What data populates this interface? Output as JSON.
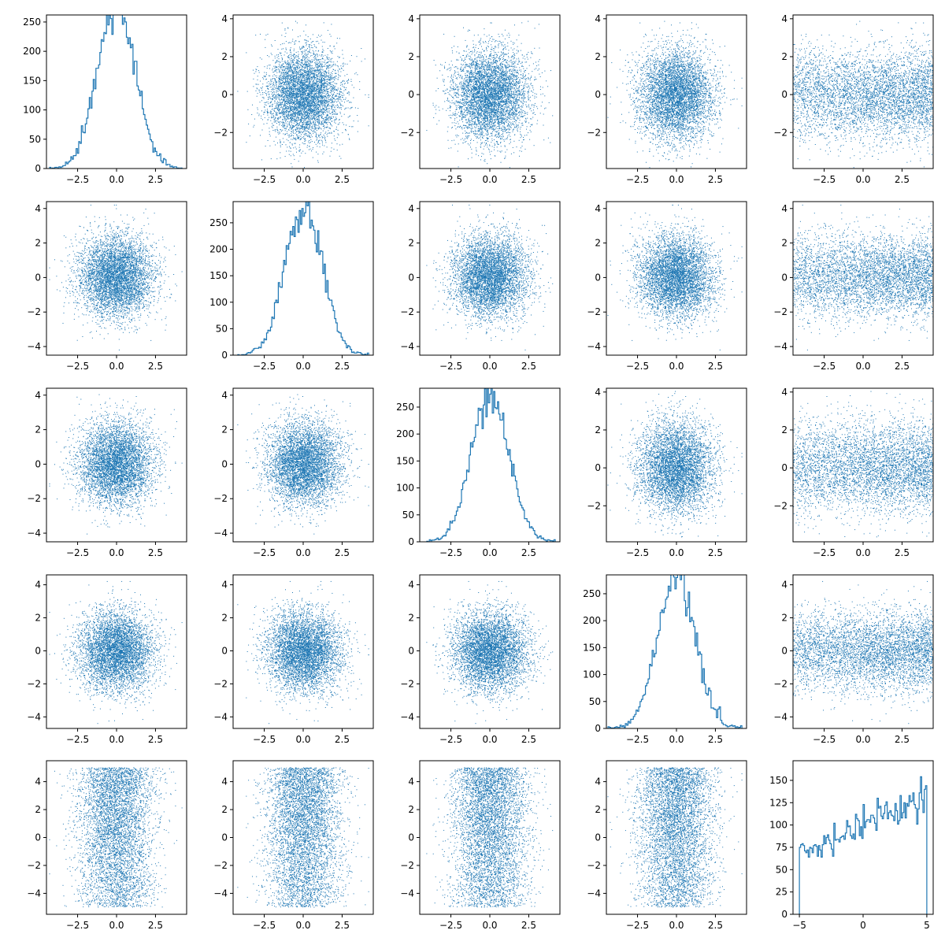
{
  "chart_data": {
    "type": "scatter",
    "kind": "scatter-matrix",
    "n_vars": 5,
    "n_points": 10000,
    "point_color": "#1f77b4",
    "diagonal_type": "histogram",
    "off_diagonal_type": "scatter",
    "variables": [
      {
        "index": 0,
        "distribution": "normal",
        "mean": 0,
        "sd": 1.2,
        "range": [
          -4.3,
          4.2
        ]
      },
      {
        "index": 1,
        "distribution": "normal",
        "mean": 0,
        "sd": 1.2,
        "range": [
          -4.2,
          4.2
        ]
      },
      {
        "index": 2,
        "distribution": "normal",
        "mean": 0,
        "sd": 1.2,
        "range": [
          -4.3,
          4.2
        ]
      },
      {
        "index": 3,
        "distribution": "normal",
        "mean": 0,
        "sd": 1.2,
        "range": [
          -4.4,
          4.2
        ]
      },
      {
        "index": 4,
        "distribution": "skewed-uniform",
        "range": [
          -5,
          5
        ],
        "increasing_density": true
      }
    ],
    "axes": [
      {
        "row": 0,
        "col": 0,
        "kind": "hist",
        "xlim": [
          -4.5,
          4.5
        ],
        "ylim": [
          0,
          262
        ],
        "xticks": [
          -2.5,
          0,
          2.5
        ],
        "xtick_labels": [
          "−2.5",
          "0.0",
          "2.5"
        ],
        "yticks": [
          0,
          50,
          100,
          150,
          200,
          250
        ],
        "ytick_labels": [
          "0",
          "50",
          "100",
          "150",
          "200",
          "250"
        ]
      },
      {
        "row": 0,
        "col": 1,
        "kind": "scatter",
        "xlim": [
          -4.5,
          4.5
        ],
        "ylim": [
          -3.9,
          4.2
        ],
        "xticks": [
          -2.5,
          0,
          2.5
        ],
        "xtick_labels": [
          "−2.5",
          "0.0",
          "2.5"
        ],
        "yticks": [
          -2,
          0,
          2,
          4
        ],
        "ytick_labels": [
          "−2",
          "0",
          "2",
          "4"
        ]
      },
      {
        "row": 0,
        "col": 2,
        "kind": "scatter",
        "xlim": [
          -4.5,
          4.5
        ],
        "ylim": [
          -3.9,
          4.2
        ],
        "xticks": [
          -2.5,
          0,
          2.5
        ],
        "xtick_labels": [
          "−2.5",
          "0.0",
          "2.5"
        ],
        "yticks": [
          -2,
          0,
          2,
          4
        ],
        "ytick_labels": [
          "−2",
          "0",
          "2",
          "4"
        ]
      },
      {
        "row": 0,
        "col": 3,
        "kind": "scatter",
        "xlim": [
          -4.5,
          4.5
        ],
        "ylim": [
          -3.9,
          4.2
        ],
        "xticks": [
          -2.5,
          0,
          2.5
        ],
        "xtick_labels": [
          "−2.5",
          "0.0",
          "2.5"
        ],
        "yticks": [
          -2,
          0,
          2,
          4
        ],
        "ytick_labels": [
          "−2",
          "0",
          "2",
          "4"
        ]
      },
      {
        "row": 0,
        "col": 4,
        "kind": "scatter",
        "xlim": [
          -4.5,
          4.5
        ],
        "ylim": [
          -3.9,
          4.2
        ],
        "xticks": [
          -2.5,
          0,
          2.5
        ],
        "xtick_labels": [
          "−2.5",
          "0.0",
          "2.5"
        ],
        "yticks": [
          -2,
          0,
          2,
          4
        ],
        "ytick_labels": [
          "−2",
          "0",
          "2",
          "4"
        ]
      },
      {
        "row": 1,
        "col": 0,
        "kind": "scatter",
        "xlim": [
          -4.5,
          4.5
        ],
        "ylim": [
          -4.5,
          4.4
        ],
        "xticks": [
          -2.5,
          0,
          2.5
        ],
        "xtick_labels": [
          "−2.5",
          "0.0",
          "2.5"
        ],
        "yticks": [
          -4,
          -2,
          0,
          2,
          4
        ],
        "ytick_labels": [
          "−4",
          "−2",
          "0",
          "2",
          "4"
        ]
      },
      {
        "row": 1,
        "col": 1,
        "kind": "hist",
        "xlim": [
          -4.5,
          4.5
        ],
        "ylim": [
          0,
          290
        ],
        "xticks": [
          -2.5,
          0,
          2.5
        ],
        "xtick_labels": [
          "−2.5",
          "0.0",
          "2.5"
        ],
        "yticks": [
          0,
          50,
          100,
          150,
          200,
          250
        ],
        "ytick_labels": [
          "0",
          "50",
          "100",
          "150",
          "200",
          "250"
        ]
      },
      {
        "row": 1,
        "col": 2,
        "kind": "scatter",
        "xlim": [
          -4.5,
          4.5
        ],
        "ylim": [
          -4.5,
          4.4
        ],
        "xticks": [
          -2.5,
          0,
          2.5
        ],
        "xtick_labels": [
          "−2.5",
          "0.0",
          "2.5"
        ],
        "yticks": [
          -4,
          -2,
          0,
          2,
          4
        ],
        "ytick_labels": [
          "−4",
          "−2",
          "0",
          "2",
          "4"
        ]
      },
      {
        "row": 1,
        "col": 3,
        "kind": "scatter",
        "xlim": [
          -4.5,
          4.5
        ],
        "ylim": [
          -4.5,
          4.4
        ],
        "xticks": [
          -2.5,
          0,
          2.5
        ],
        "xtick_labels": [
          "−2.5",
          "0.0",
          "2.5"
        ],
        "yticks": [
          -4,
          -2,
          0,
          2,
          4
        ],
        "ytick_labels": [
          "−4",
          "−2",
          "0",
          "2",
          "4"
        ]
      },
      {
        "row": 1,
        "col": 4,
        "kind": "scatter",
        "xlim": [
          -4.5,
          4.5
        ],
        "ylim": [
          -4.5,
          4.4
        ],
        "xticks": [
          -2.5,
          0,
          2.5
        ],
        "xtick_labels": [
          "−2.5",
          "0.0",
          "2.5"
        ],
        "yticks": [
          -4,
          -2,
          0,
          2,
          4
        ],
        "ytick_labels": [
          "−4",
          "−2",
          "0",
          "2",
          "4"
        ]
      },
      {
        "row": 2,
        "col": 0,
        "kind": "scatter",
        "xlim": [
          -4.5,
          4.5
        ],
        "ylim": [
          -4.5,
          4.4
        ],
        "xticks": [
          -2.5,
          0,
          2.5
        ],
        "xtick_labels": [
          "−2.5",
          "0.0",
          "2.5"
        ],
        "yticks": [
          -4,
          -2,
          0,
          2,
          4
        ],
        "ytick_labels": [
          "−4",
          "−2",
          "0",
          "2",
          "4"
        ]
      },
      {
        "row": 2,
        "col": 1,
        "kind": "scatter",
        "xlim": [
          -4.5,
          4.5
        ],
        "ylim": [
          -4.5,
          4.4
        ],
        "xticks": [
          -2.5,
          0,
          2.5
        ],
        "xtick_labels": [
          "−2.5",
          "0.0",
          "2.5"
        ],
        "yticks": [
          -4,
          -2,
          0,
          2,
          4
        ],
        "ytick_labels": [
          "−4",
          "−2",
          "0",
          "2",
          "4"
        ]
      },
      {
        "row": 2,
        "col": 2,
        "kind": "hist",
        "xlim": [
          -4.5,
          4.5
        ],
        "ylim": [
          0,
          285
        ],
        "xticks": [
          -2.5,
          0,
          2.5
        ],
        "xtick_labels": [
          "−2.5",
          "0.0",
          "2.5"
        ],
        "yticks": [
          0,
          50,
          100,
          150,
          200,
          250
        ],
        "ytick_labels": [
          "0",
          "50",
          "100",
          "150",
          "200",
          "250"
        ]
      },
      {
        "row": 2,
        "col": 3,
        "kind": "scatter",
        "xlim": [
          -4.5,
          4.5
        ],
        "ylim": [
          -3.9,
          4.2
        ],
        "xticks": [
          -2.5,
          0,
          2.5
        ],
        "xtick_labels": [
          "−2.5",
          "0.0",
          "2.5"
        ],
        "yticks": [
          -2,
          0,
          2,
          4
        ],
        "ytick_labels": [
          "−2",
          "0",
          "2",
          "4"
        ]
      },
      {
        "row": 2,
        "col": 4,
        "kind": "scatter",
        "xlim": [
          -4.5,
          4.5
        ],
        "ylim": [
          -3.9,
          4.2
        ],
        "xticks": [
          -2.5,
          0,
          2.5
        ],
        "xtick_labels": [
          "−2.5",
          "0.0",
          "2.5"
        ],
        "yticks": [
          -2,
          0,
          2,
          4
        ],
        "ytick_labels": [
          "−2",
          "0",
          "2",
          "4"
        ]
      },
      {
        "row": 3,
        "col": 0,
        "kind": "scatter",
        "xlim": [
          -4.5,
          4.5
        ],
        "ylim": [
          -4.7,
          4.6
        ],
        "xticks": [
          -2.5,
          0,
          2.5
        ],
        "xtick_labels": [
          "−2.5",
          "0.0",
          "2.5"
        ],
        "yticks": [
          -4,
          -2,
          0,
          2,
          4
        ],
        "ytick_labels": [
          "−4",
          "−2",
          "0",
          "2",
          "4"
        ]
      },
      {
        "row": 3,
        "col": 1,
        "kind": "scatter",
        "xlim": [
          -4.5,
          4.5
        ],
        "ylim": [
          -4.7,
          4.6
        ],
        "xticks": [
          -2.5,
          0,
          2.5
        ],
        "xtick_labels": [
          "−2.5",
          "0.0",
          "2.5"
        ],
        "yticks": [
          -4,
          -2,
          0,
          2,
          4
        ],
        "ytick_labels": [
          "−4",
          "−2",
          "0",
          "2",
          "4"
        ]
      },
      {
        "row": 3,
        "col": 2,
        "kind": "scatter",
        "xlim": [
          -4.5,
          4.5
        ],
        "ylim": [
          -4.7,
          4.6
        ],
        "xticks": [
          -2.5,
          0,
          2.5
        ],
        "xtick_labels": [
          "−2.5",
          "0.0",
          "2.5"
        ],
        "yticks": [
          -4,
          -2,
          0,
          2,
          4
        ],
        "ytick_labels": [
          "−4",
          "−2",
          "0",
          "2",
          "4"
        ]
      },
      {
        "row": 3,
        "col": 3,
        "kind": "hist",
        "xlim": [
          -4.5,
          4.5
        ],
        "ylim": [
          0,
          285
        ],
        "xticks": [
          -2.5,
          0,
          2.5
        ],
        "xtick_labels": [
          "−2.5",
          "0.0",
          "2.5"
        ],
        "yticks": [
          0,
          50,
          100,
          150,
          200,
          250
        ],
        "ytick_labels": [
          "0",
          "50",
          "100",
          "150",
          "200",
          "250"
        ]
      },
      {
        "row": 3,
        "col": 4,
        "kind": "scatter",
        "xlim": [
          -4.5,
          4.5
        ],
        "ylim": [
          -4.7,
          4.6
        ],
        "xticks": [
          -2.5,
          0,
          2.5
        ],
        "xtick_labels": [
          "−2.5",
          "0.0",
          "2.5"
        ],
        "yticks": [
          -4,
          -2,
          0,
          2,
          4
        ],
        "ytick_labels": [
          "−4",
          "−2",
          "0",
          "2",
          "4"
        ]
      },
      {
        "row": 4,
        "col": 0,
        "kind": "scatter",
        "xlim": [
          -4.5,
          4.5
        ],
        "ylim": [
          -5.5,
          5.5
        ],
        "xticks": [
          -2.5,
          0,
          2.5
        ],
        "xtick_labels": [
          "−2.5",
          "0.0",
          "2.5"
        ],
        "yticks": [
          -4,
          -2,
          0,
          2,
          4
        ],
        "ytick_labels": [
          "−4",
          "−2",
          "0",
          "2",
          "4"
        ]
      },
      {
        "row": 4,
        "col": 1,
        "kind": "scatter",
        "xlim": [
          -4.5,
          4.5
        ],
        "ylim": [
          -5.5,
          5.5
        ],
        "xticks": [
          -2.5,
          0,
          2.5
        ],
        "xtick_labels": [
          "−2.5",
          "0.0",
          "2.5"
        ],
        "yticks": [
          -4,
          -2,
          0,
          2,
          4
        ],
        "ytick_labels": [
          "−4",
          "−2",
          "0",
          "2",
          "4"
        ]
      },
      {
        "row": 4,
        "col": 2,
        "kind": "scatter",
        "xlim": [
          -4.5,
          4.5
        ],
        "ylim": [
          -5.5,
          5.5
        ],
        "xticks": [
          -2.5,
          0,
          2.5
        ],
        "xtick_labels": [
          "−2.5",
          "0.0",
          "2.5"
        ],
        "yticks": [
          -4,
          -2,
          0,
          2,
          4
        ],
        "ytick_labels": [
          "−4",
          "−2",
          "0",
          "2",
          "4"
        ]
      },
      {
        "row": 4,
        "col": 3,
        "kind": "scatter",
        "xlim": [
          -4.5,
          4.5
        ],
        "ylim": [
          -5.5,
          5.5
        ],
        "xticks": [
          -2.5,
          0,
          2.5
        ],
        "xtick_labels": [
          "−2.5",
          "0.0",
          "2.5"
        ],
        "yticks": [
          -4,
          -2,
          0,
          2,
          4
        ],
        "ytick_labels": [
          "−4",
          "−2",
          "0",
          "2",
          "4"
        ]
      },
      {
        "row": 4,
        "col": 4,
        "kind": "hist",
        "xlim": [
          -5.5,
          5.5
        ],
        "ylim": [
          0,
          172
        ],
        "xticks": [
          -5,
          0,
          5
        ],
        "xtick_labels": [
          "−5",
          "0",
          "5"
        ],
        "yticks": [
          0,
          25,
          50,
          75,
          100,
          125,
          150
        ],
        "ytick_labels": [
          "0",
          "25",
          "50",
          "75",
          "100",
          "125",
          "150"
        ]
      }
    ]
  }
}
